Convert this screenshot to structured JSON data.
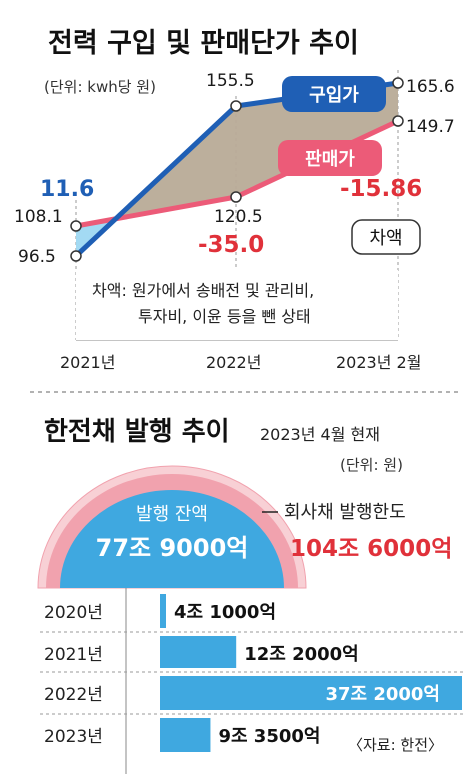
{
  "colors": {
    "purchase": "#1f5fb5",
    "sale": "#ec5b78",
    "gap_fill": "#b8ab97",
    "gap_fill_left": "#9ed8f2",
    "negative": "#e0313a",
    "positive": "#1f5fb5",
    "ring": "#f1a2ae",
    "ring_outer": "#f8d0d5",
    "issued_bubble": "#3fa8e0",
    "bar": "#3fa8e0"
  },
  "chart_data": [
    {
      "type": "line",
      "title": "전력 구입 및 판매단가 추이",
      "unit": "(단위: kwh당 원)",
      "x": [
        "2021년",
        "2022년",
        "2023년 2월"
      ],
      "series": [
        {
          "name": "구입가",
          "values": [
            96.5,
            155.5,
            165.6
          ],
          "labels": [
            "96.5",
            "155.5",
            "165.6"
          ]
        },
        {
          "name": "판매가",
          "values": [
            108.1,
            120.5,
            149.7
          ],
          "labels": [
            "108.1",
            "120.5",
            "149.7"
          ]
        }
      ],
      "differences": [
        "11.6",
        "-35.0",
        "-15.86"
      ],
      "diff_legend": "차액",
      "note_lines": [
        "차액: 원가에서 송배전 및 관리비,",
        "투자비, 이윤 등을 뺀 상태"
      ]
    },
    {
      "type": "bar",
      "title": "한전채 발행 추이",
      "as_of": "2023년 4월 현재",
      "unit": "(단위: 원)",
      "limit_label": "회사채 발행한도",
      "limit_value": "104조 6000억",
      "balance_label": "발행 잔액",
      "balance_value": "77조 9000억",
      "balance_share": 0.745,
      "categories": [
        "2020년",
        "2021년",
        "2022년",
        "2023년"
      ],
      "values": [
        4.1,
        12.2,
        37.2,
        9.35
      ],
      "value_labels": [
        "4조 1000억",
        "12조 2000억",
        "37조 2000억",
        "9조 3500억"
      ],
      "source": "〈자료: 한전〉"
    }
  ]
}
